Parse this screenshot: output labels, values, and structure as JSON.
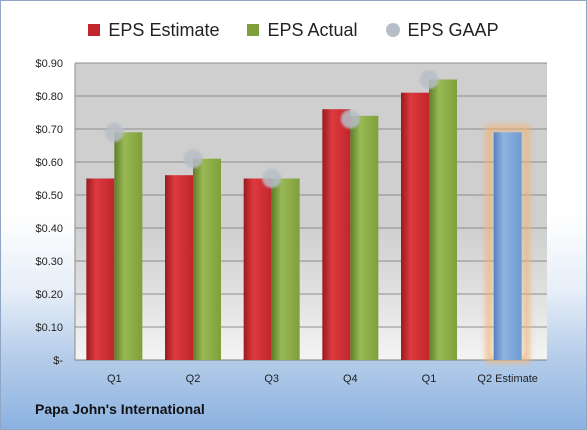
{
  "chart_data": {
    "type": "bar",
    "title": "",
    "xlabel": "",
    "ylabel": "",
    "categories": [
      "Q1",
      "Q2",
      "Q3",
      "Q4",
      "Q1",
      "Q2 Estimate"
    ],
    "ylim": [
      0,
      0.9
    ],
    "yticks": [
      0,
      0.1,
      0.2,
      0.3,
      0.4,
      0.5,
      0.6,
      0.7,
      0.8,
      0.9
    ],
    "ytick_labels": [
      "$-",
      "$0.10",
      "$0.20",
      "$0.30",
      "$0.40",
      "$0.50",
      "$0.60",
      "$0.70",
      "$0.80",
      "$0.90"
    ],
    "grid": true,
    "legend_position": "top",
    "series": [
      {
        "name": "EPS Estimate",
        "type": "bar",
        "color": "#c0262c",
        "values": [
          0.55,
          0.56,
          0.55,
          0.76,
          0.81,
          null
        ]
      },
      {
        "name": "EPS Actual",
        "type": "bar",
        "color": "#7f9f3a",
        "values": [
          0.69,
          0.61,
          0.55,
          0.74,
          0.85,
          null
        ]
      },
      {
        "name": "EPS GAAP",
        "type": "scatter",
        "color": "#b8bec8",
        "values": [
          0.69,
          0.61,
          0.55,
          0.73,
          0.85,
          null
        ]
      },
      {
        "name": "Q2 Estimate",
        "type": "bar",
        "color": "#6f9bd3",
        "highlight": "#f0b476",
        "values": [
          null,
          null,
          null,
          null,
          null,
          0.69
        ]
      }
    ]
  },
  "footer": {
    "company": "Papa John's International"
  }
}
